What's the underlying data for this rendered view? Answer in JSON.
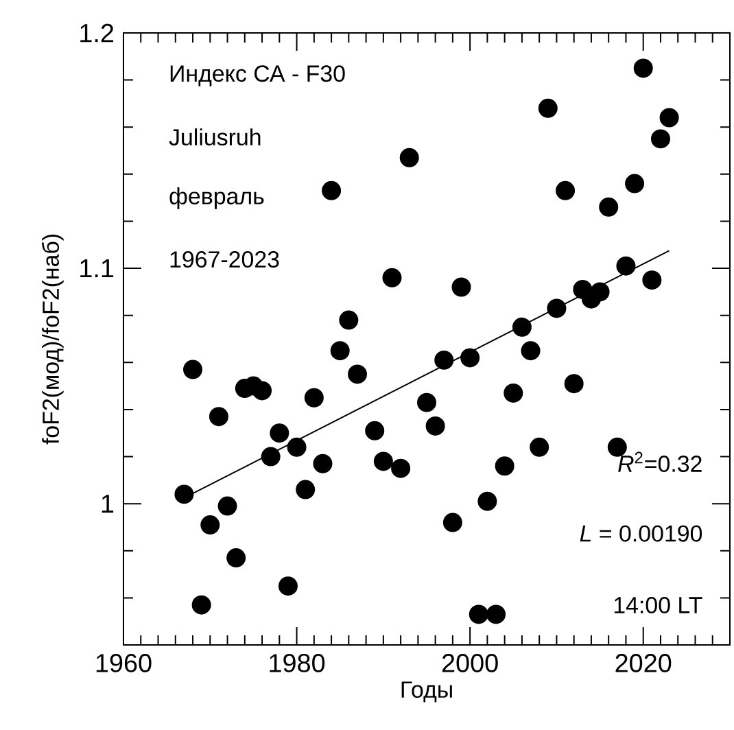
{
  "chart_data": {
    "type": "scatter",
    "xlabel": "Годы",
    "ylabel": "foF2(мод)/foF2(наб)",
    "annotations": [
      "Индекс СА - F30",
      "Juliusruh",
      "февраль",
      "1967-2023",
      "*R*$^{2}$=0.32",
      "*L* = 0.00190",
      "14:00 LT"
    ],
    "series": [
      {
        "color": "#000000",
        "marker": "circle",
        "x": [
          1967,
          1968,
          1969,
          1970,
          1971,
          1972,
          1973,
          1974,
          1975,
          1976,
          1977,
          1978,
          1979,
          1980,
          1981,
          1982,
          1983,
          1984,
          1985,
          1986,
          1987,
          1989,
          1990,
          1991,
          1992,
          1993,
          1995,
          1996,
          1997,
          1998,
          1999,
          2000,
          2001,
          2002,
          2003,
          2004,
          2005,
          2006,
          2007,
          2008,
          2009,
          2010,
          2011,
          2012,
          2013,
          2014,
          2015,
          2016,
          2017,
          2018,
          2019,
          2020,
          2021,
          2022,
          2023
        ],
        "values": [
          1.004,
          1.057,
          0.957,
          0.991,
          1.037,
          0.999,
          0.977,
          1.049,
          1.05,
          1.048,
          1.02,
          1.03,
          0.965,
          1.024,
          1.006,
          1.045,
          1.017,
          1.133,
          1.065,
          1.078,
          1.055,
          1.031,
          1.018,
          1.096,
          1.015,
          1.147,
          1.043,
          1.033,
          1.061,
          0.992,
          1.092,
          1.062,
          0.953,
          1.001,
          0.953,
          1.016,
          1.047,
          1.075,
          1.065,
          1.024,
          1.168,
          1.083,
          1.133,
          1.051,
          1.091,
          1.087,
          1.09,
          1.126,
          1.024,
          1.101,
          1.136,
          1.185,
          1.095,
          1.155,
          1.164
        ]
      },
      {
        "type": "line",
        "color": "#000000",
        "marker": "none",
        "x": [
          1967,
          2023
        ],
        "values": [
          1.0025,
          1.1075
        ]
      }
    ],
    "xlim": [
      1960,
      2030
    ],
    "ylim": [
      0.94,
      1.2
    ],
    "xticks": [
      1960,
      1980,
      2000,
      2020
    ],
    "yticks": [
      1,
      1.1,
      1.2
    ]
  }
}
